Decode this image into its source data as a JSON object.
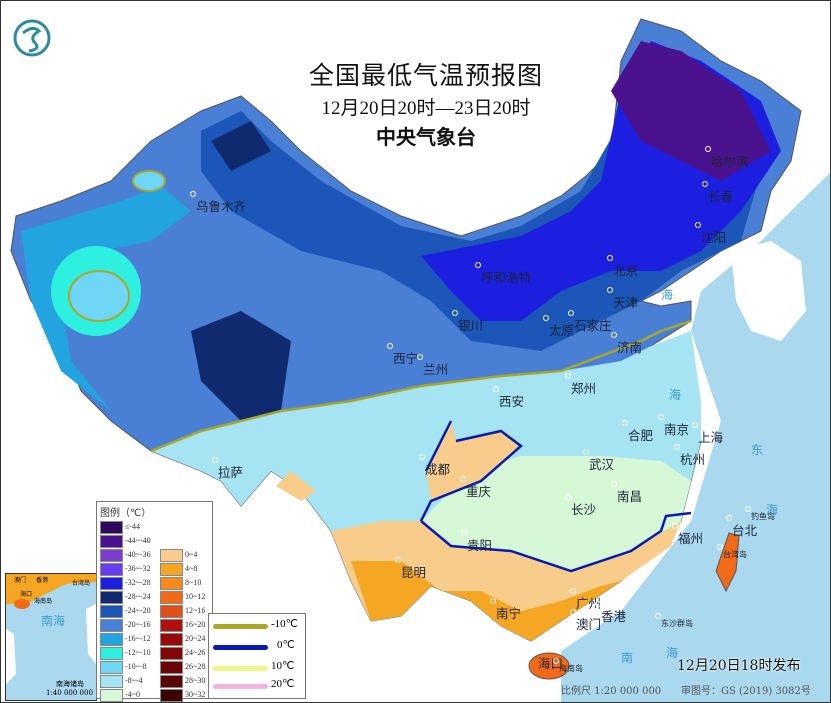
{
  "header": {
    "title": "全国最低气温预报图",
    "period": "12月20日20时—23日20时",
    "issuer": "中央气象台",
    "logo_icon": "cma-logo-icon"
  },
  "cities": [
    {
      "name": "乌鲁木齐"
    },
    {
      "name": "哈尔滨"
    },
    {
      "name": "长春"
    },
    {
      "name": "沈阳"
    },
    {
      "name": "呼和浩特"
    },
    {
      "name": "北京"
    },
    {
      "name": "天津"
    },
    {
      "name": "银川"
    },
    {
      "name": "太原"
    },
    {
      "name": "石家庄"
    },
    {
      "name": "济南"
    },
    {
      "name": "西宁"
    },
    {
      "name": "兰州"
    },
    {
      "name": "郑州"
    },
    {
      "name": "西安"
    },
    {
      "name": "合肥"
    },
    {
      "name": "南京"
    },
    {
      "name": "上海"
    },
    {
      "name": "杭州"
    },
    {
      "name": "成都"
    },
    {
      "name": "重庆"
    },
    {
      "name": "武汉"
    },
    {
      "name": "长沙"
    },
    {
      "name": "南昌"
    },
    {
      "name": "拉萨"
    },
    {
      "name": "贵阳"
    },
    {
      "name": "福州"
    },
    {
      "name": "台北"
    },
    {
      "name": "昆明"
    },
    {
      "name": "南宁"
    },
    {
      "name": "广州"
    },
    {
      "name": "香港"
    },
    {
      "name": "澳门"
    },
    {
      "name": "海口"
    }
  ],
  "sea_labels": [
    "海",
    "海",
    "东",
    "海",
    "南",
    "海"
  ],
  "island_labels": {
    "taiwan": "台湾岛",
    "hainan": "海南岛",
    "dongsha": "东沙群岛",
    "diaoyu": "钓鱼岛"
  },
  "legend": {
    "title": "图例（℃）",
    "cold": [
      {
        "label": "≤-44",
        "color": "#2d0a5a"
      },
      {
        "label": "-44~-40",
        "color": "#4b1290"
      },
      {
        "label": "-40~-36",
        "color": "#7a3fd0"
      },
      {
        "label": "-36~-32",
        "color": "#6a3cf0"
      },
      {
        "label": "-32~-28",
        "color": "#1c1fe0"
      },
      {
        "label": "-28~-24",
        "color": "#0f2a6e"
      },
      {
        "label": "-24~-20",
        "color": "#1b56b8"
      },
      {
        "label": "-20~-16",
        "color": "#4a7fd6"
      },
      {
        "label": "-16~-12",
        "color": "#22a4e0"
      },
      {
        "label": "-12~-10",
        "color": "#2ef0e0"
      },
      {
        "label": "-10~-8",
        "color": "#6fd6f5"
      },
      {
        "label": "-8~-4",
        "color": "#a6e4f3"
      },
      {
        "label": "-4~0",
        "color": "#d6f8d6"
      }
    ],
    "warm": [
      {
        "label": "0~4",
        "color": "#f8cd8c"
      },
      {
        "label": "4~8",
        "color": "#f5a623"
      },
      {
        "label": "8~10",
        "color": "#f58b1f"
      },
      {
        "label": "10~12",
        "color": "#f26a18"
      },
      {
        "label": "12~16",
        "color": "#e0501a"
      },
      {
        "label": "16~20",
        "color": "#b01010"
      },
      {
        "label": "20~24",
        "color": "#980a0a"
      },
      {
        "label": "24~26",
        "color": "#820808"
      },
      {
        "label": "26~28",
        "color": "#6a0606"
      },
      {
        "label": "28~30",
        "color": "#560404"
      },
      {
        "label": "30~32",
        "color": "#3a0202"
      }
    ],
    "isolines": [
      {
        "label": "-10℃",
        "color": "#a8a828"
      },
      {
        "label": "0℃",
        "color": "#0a1ab0"
      },
      {
        "label": "10℃",
        "color": "#eef58a"
      },
      {
        "label": "20℃",
        "color": "#f2b6dc"
      }
    ]
  },
  "inset": {
    "sea": "南海",
    "islands": "南海诸岛",
    "scale": "1:40 000 000",
    "labels": [
      "澳门",
      "香港",
      "台湾岛",
      "海口",
      "海南岛"
    ]
  },
  "footer": {
    "issued": "12月20日18时发布",
    "scale": "比例尺 1:20 000 000",
    "map_number": "审图号：GS (2019) 3082号"
  }
}
